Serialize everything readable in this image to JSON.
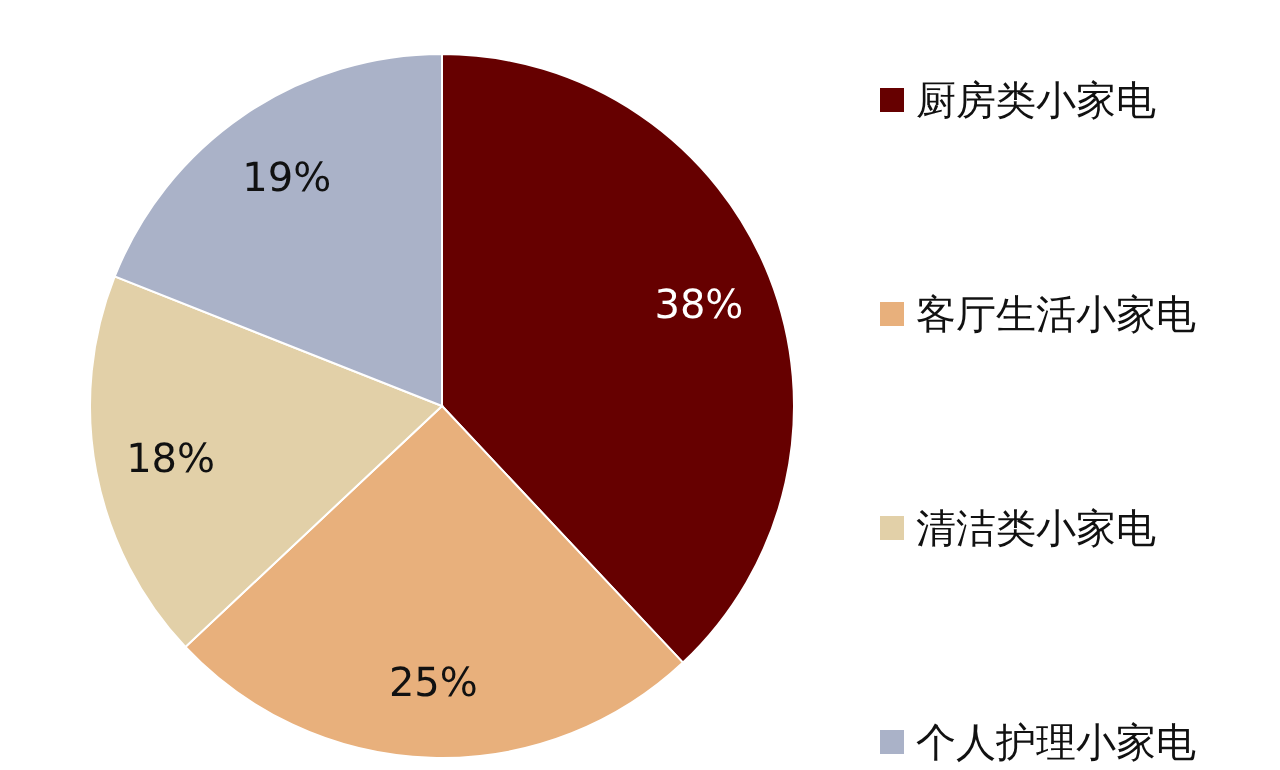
{
  "chart_data": {
    "type": "pie",
    "categories": [
      "厨房类小家电",
      "客厅生活小家电",
      "清洁类小家电",
      "个人护理小家电"
    ],
    "values": [
      38,
      25,
      18,
      19
    ],
    "colors": [
      "#660000",
      "#e8b07c",
      "#e2d0a8",
      "#aab2c8"
    ],
    "value_labels": [
      "38%",
      "25%",
      "18%",
      "19%"
    ],
    "legend": "right"
  }
}
